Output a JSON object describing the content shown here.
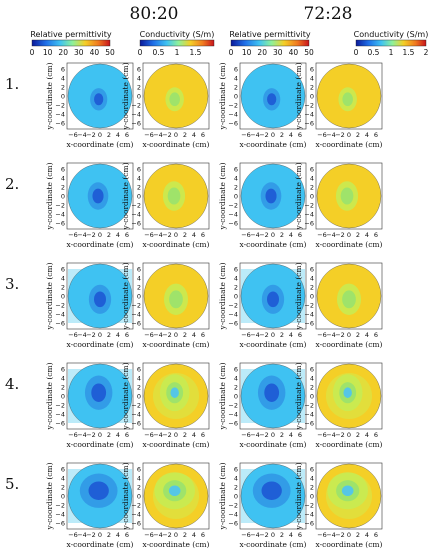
{
  "columns": [
    {
      "group_label": "80:20",
      "colorbar_label": "Relative permittivity",
      "ticks": [
        "0",
        "10",
        "20",
        "30",
        "40",
        "50"
      ]
    },
    {
      "group_label": "80:20",
      "colorbar_label": "Conductivity (S/m)",
      "ticks": [
        "0",
        "0.5",
        "1",
        "1.5"
      ]
    },
    {
      "group_label": "72:28",
      "colorbar_label": "Relative permittivity",
      "ticks": [
        "0",
        "10",
        "20",
        "30",
        "40",
        "50"
      ]
    },
    {
      "group_label": "72:28",
      "colorbar_label": "Conductivity (S/m)",
      "ticks": [
        "0",
        "0.5",
        "1",
        "1.5",
        "2"
      ]
    }
  ],
  "group_labels": [
    "80:20",
    "72:28"
  ],
  "row_labels": [
    "1.",
    "2.",
    "3.",
    "4.",
    "5."
  ],
  "axes": {
    "xlabel": "x-coordinate (cm)",
    "ylabel": "y-coordinate (cm)",
    "xticks": [
      "−6",
      "−4",
      "−2",
      "0",
      "2",
      "4",
      "6"
    ],
    "yticks": [
      "6",
      "4",
      "2",
      "0",
      "−2",
      "−4",
      "−6"
    ]
  },
  "colors": {
    "permittivity_background": "#3fc2f2",
    "permittivity_target": "#1f5fd6",
    "conductivity_background": "#f4cf27",
    "conductivity_target": "#9fe36a",
    "colormap": [
      "#0b1a9a",
      "#1f6fe8",
      "#3fc2f2",
      "#8ef19a",
      "#f4cf27",
      "#f07a20",
      "#c8141c"
    ]
  }
}
